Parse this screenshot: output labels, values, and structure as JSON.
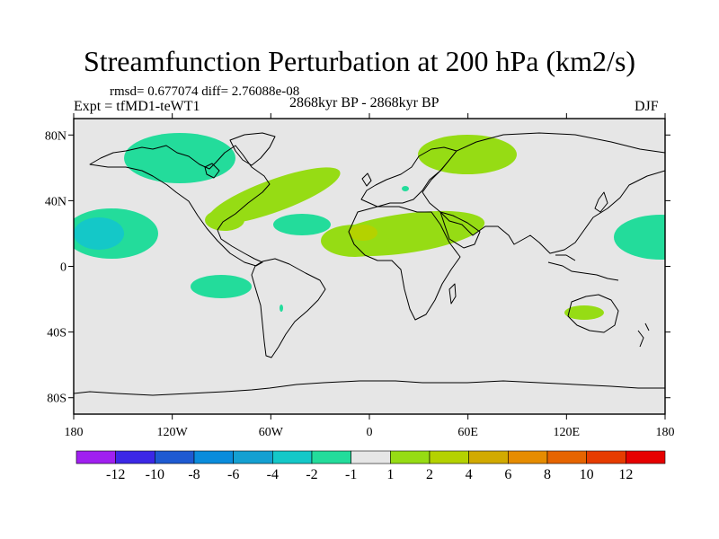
{
  "chart_data": {
    "type": "heatmap",
    "title": "Streamfunction Perturbation at 200 hPa (km2/s)",
    "subtitle_stats": "rmsd= 0.677074 diff= 2.76088e-08",
    "experiment_label": "Expt = tfMD1-teWT1",
    "period_label": "2868kyr BP - 2868kyr BP",
    "season_label": "DJF",
    "projection": "cylindrical-equidistant",
    "xlim": [
      -180,
      180
    ],
    "ylim": [
      -90,
      90
    ],
    "x_ticks": [
      {
        "value": -180,
        "label": "180"
      },
      {
        "value": -120,
        "label": "120W"
      },
      {
        "value": -60,
        "label": "60W"
      },
      {
        "value": 0,
        "label": "0"
      },
      {
        "value": 60,
        "label": "60E"
      },
      {
        "value": 120,
        "label": "120E"
      },
      {
        "value": 180,
        "label": "180"
      }
    ],
    "y_ticks": [
      {
        "value": 80,
        "label": "80N"
      },
      {
        "value": 40,
        "label": "40N"
      },
      {
        "value": 0,
        "label": "0"
      },
      {
        "value": -40,
        "label": "40S"
      },
      {
        "value": -80,
        "label": "80S"
      }
    ],
    "contour_levels": [
      -12,
      -10,
      -8,
      -6,
      -4,
      -2,
      -1,
      1,
      2,
      4,
      6,
      8,
      10,
      12
    ],
    "colorbar_labels": [
      "-12",
      "-10",
      "-8",
      "-6",
      "-4",
      "-2",
      "-1",
      "1",
      "2",
      "4",
      "6",
      "8",
      "10",
      "12"
    ],
    "colorbar_colors": [
      "#a020f0",
      "#3c28e6",
      "#1e5ad2",
      "#0a8cdc",
      "#14a0d2",
      "#14c8c8",
      "#23dc9b",
      "#e6e6e6",
      "#96dc14",
      "#b4d200",
      "#d2aa00",
      "#e68c00",
      "#e66400",
      "#e63c00",
      "#e60000"
    ],
    "background_color": "#e6e6e6",
    "anomalies": [
      {
        "region": "Canada / Greenland",
        "lon": -95,
        "lat": 70,
        "level": "-2 to -1"
      },
      {
        "region": "Central North Pacific",
        "lon": -162,
        "lat": 20,
        "level": "-4 to -2"
      },
      {
        "region": "Eastern North Pacific",
        "lon": 165,
        "lat": 17,
        "level": "-2 to -1"
      },
      {
        "region": "Central North Atlantic",
        "lon": -46,
        "lat": 25,
        "level": "-2 to -1"
      },
      {
        "region": "South Pacific",
        "lon": -100,
        "lat": -12,
        "level": "-2 to -1"
      },
      {
        "region": "Eastern US / Western Atlantic",
        "lon": -65,
        "lat": 42,
        "level": "1 to 2"
      },
      {
        "region": "Northern Africa / Middle East",
        "lon": 15,
        "lat": 20,
        "level": "1 to 2"
      },
      {
        "region": "West Africa",
        "lon": -2,
        "lat": 20,
        "level": "2 to 4"
      },
      {
        "region": "Scandinavia / Russia",
        "lon": 55,
        "lat": 65,
        "level": "1 to 2"
      },
      {
        "region": "Australia",
        "lon": 133,
        "lat": -30,
        "level": "1 to 2"
      }
    ]
  }
}
